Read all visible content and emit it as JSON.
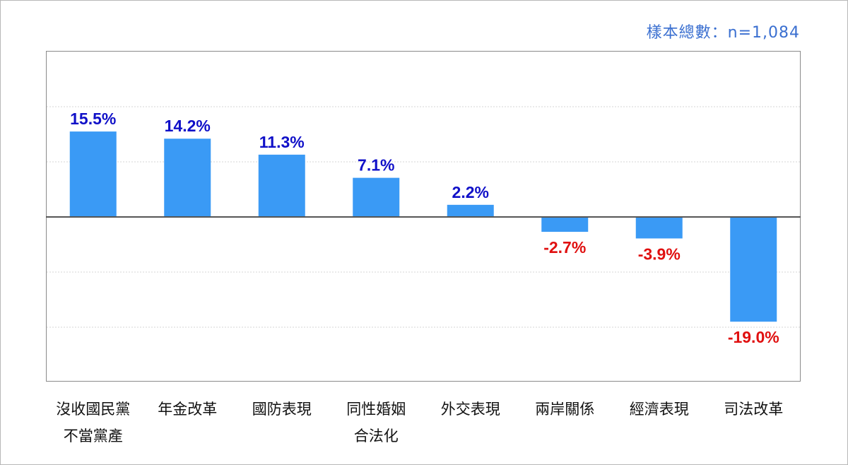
{
  "sample_note": "樣本總數：n=1,084",
  "colors": {
    "bar": "#3a9af5",
    "positive_label": "#1010c8",
    "negative_label": "#e01010"
  },
  "chart_data": {
    "type": "bar",
    "categories": [
      "沒收國民黨\n不當黨產",
      "年金改革",
      "國防表現",
      "同性婚姻\n合法化",
      "外交表現",
      "兩岸關係",
      "經濟表現",
      "司法改革"
    ],
    "values": [
      15.5,
      14.2,
      11.3,
      7.1,
      2.2,
      -2.7,
      -3.9,
      -19.0
    ],
    "value_labels": [
      "15.5%",
      "14.2%",
      "11.3%",
      "7.1%",
      "2.2%",
      "-2.7%",
      "-3.9%",
      "-19.0%"
    ],
    "title": "",
    "xlabel": "",
    "ylabel": "",
    "ylim": [
      -30,
      30
    ],
    "grid": true
  }
}
